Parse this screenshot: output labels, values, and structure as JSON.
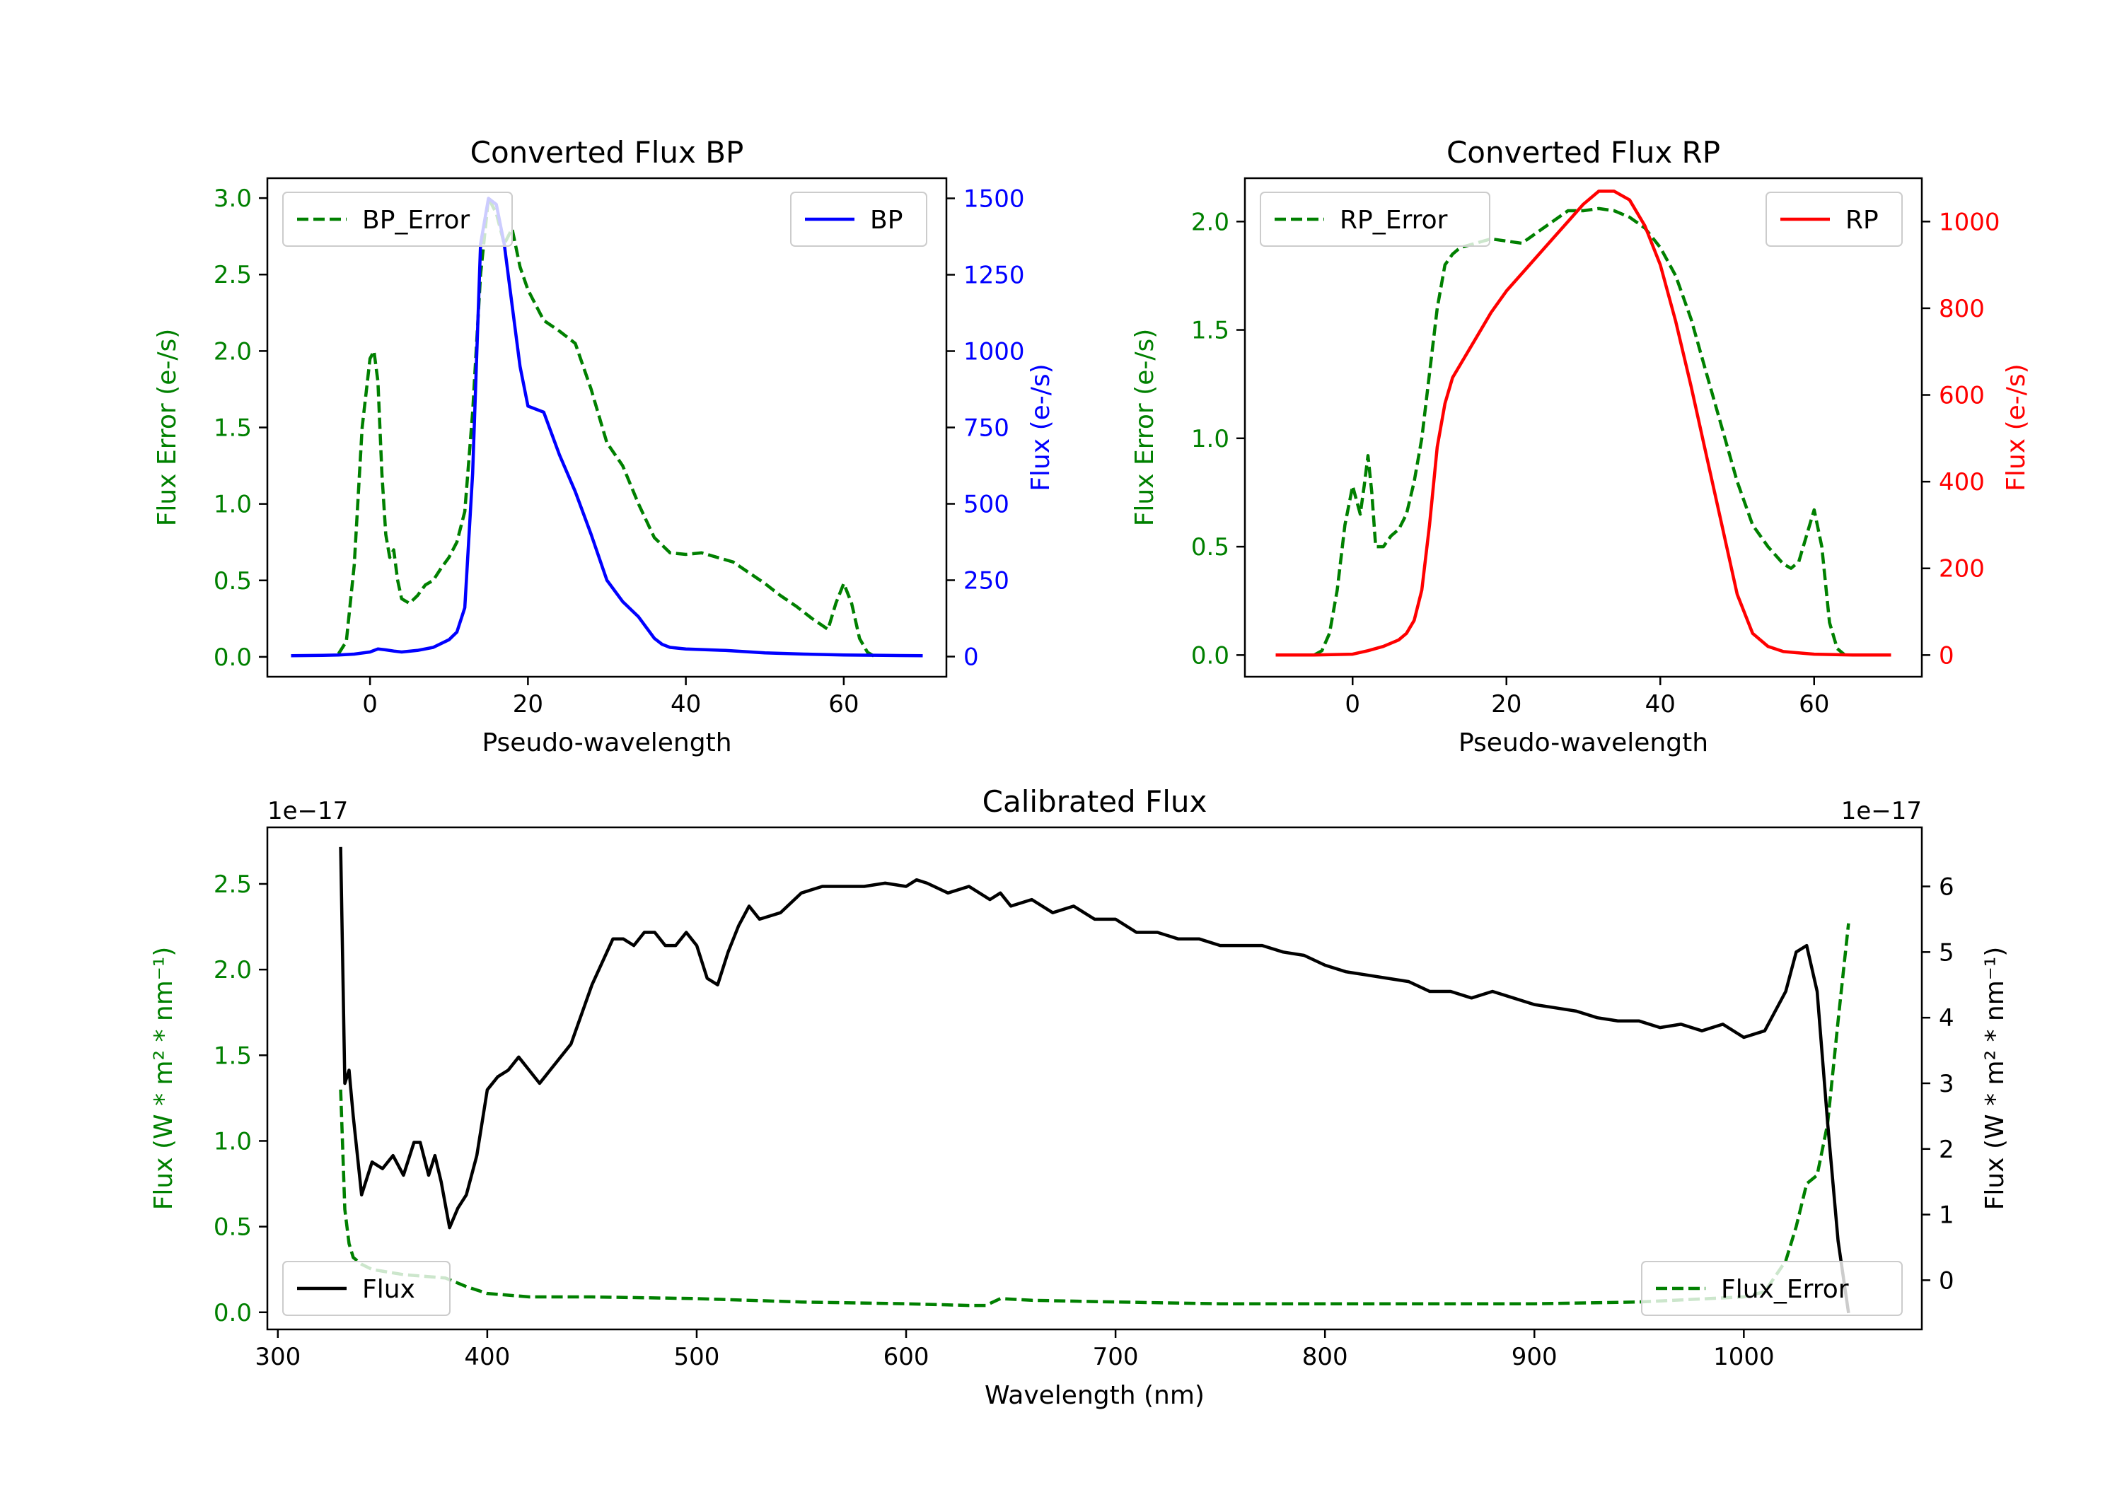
{
  "chart_data": [
    {
      "type": "line",
      "title": "Converted Flux BP",
      "xlabel": "Pseudo-wavelength",
      "ylabel_left": "Flux Error (e-/s)",
      "ylabel_right": "Flux (e-/s)",
      "xlim": [
        -13,
        73
      ],
      "ylim_left": [
        -0.13,
        3.13
      ],
      "ylim_right": [
        -66,
        1566
      ],
      "xticks": [
        "0",
        "20",
        "40",
        "60"
      ],
      "xtick_values": [
        0,
        20,
        40,
        60
      ],
      "yticks_left": [
        "0.0",
        "0.5",
        "1.0",
        "1.5",
        "2.0",
        "2.5",
        "3.0"
      ],
      "ytick_values_left": [
        0,
        0.5,
        1,
        1.5,
        2,
        2.5,
        3
      ],
      "yticks_right": [
        "0",
        "250",
        "500",
        "750",
        "1000",
        "1250",
        "1500"
      ],
      "ytick_values_right": [
        0,
        250,
        500,
        750,
        1000,
        1250,
        1500
      ],
      "legend_left": "BP_Error",
      "legend_right": "BP",
      "colors": {
        "error": "#008000",
        "flux": "#0000ff",
        "left_axis": "#008000",
        "right_axis": "#0000ff"
      },
      "series": [
        {
          "name": "BP_Error",
          "axis": "left",
          "style": "dashed",
          "x": [
            -4,
            -3,
            -2,
            -1,
            0,
            0.5,
            1,
            1.5,
            2,
            2.5,
            3,
            3.5,
            4,
            5,
            6,
            7,
            8,
            9,
            10,
            11,
            12,
            13,
            14,
            15,
            16,
            17,
            18,
            19,
            20,
            22,
            24,
            26,
            28,
            30,
            32,
            34,
            36,
            38,
            40,
            42,
            44,
            46,
            48,
            50,
            52,
            54,
            56,
            58,
            59,
            60,
            61,
            62,
            63,
            64
          ],
          "y": [
            0.02,
            0.1,
            0.6,
            1.5,
            1.95,
            2.0,
            1.8,
            1.2,
            0.8,
            0.65,
            0.7,
            0.5,
            0.38,
            0.35,
            0.4,
            0.47,
            0.5,
            0.58,
            0.65,
            0.75,
            0.95,
            1.6,
            2.5,
            3.0,
            2.9,
            2.7,
            2.8,
            2.55,
            2.4,
            2.2,
            2.13,
            2.05,
            1.75,
            1.4,
            1.25,
            1.0,
            0.78,
            0.68,
            0.67,
            0.68,
            0.65,
            0.62,
            0.55,
            0.48,
            0.4,
            0.33,
            0.25,
            0.18,
            0.35,
            0.48,
            0.35,
            0.12,
            0.03,
            0.0
          ]
        },
        {
          "name": "BP",
          "axis": "right",
          "style": "solid",
          "x": [
            -10,
            -6,
            -4,
            -2,
            0,
            1,
            2,
            3,
            4,
            6,
            8,
            10,
            11,
            12,
            13,
            14,
            15,
            16,
            17,
            18,
            19,
            20,
            22,
            24,
            26,
            28,
            30,
            32,
            34,
            36,
            37,
            38,
            40,
            45,
            50,
            55,
            60,
            65,
            70
          ],
          "y": [
            3,
            4,
            5,
            8,
            15,
            25,
            22,
            18,
            15,
            20,
            30,
            55,
            80,
            160,
            600,
            1350,
            1500,
            1480,
            1350,
            1150,
            950,
            820,
            800,
            660,
            540,
            400,
            250,
            180,
            130,
            60,
            40,
            30,
            25,
            20,
            12,
            8,
            5,
            4,
            3
          ]
        }
      ]
    },
    {
      "type": "line",
      "title": "Converted Flux RP",
      "xlabel": "Pseudo-wavelength",
      "ylabel_left": "Flux Error (e-/s)",
      "ylabel_right": "Flux (e-/s)",
      "xlim": [
        -14,
        74
      ],
      "ylim_left": [
        -0.1,
        2.2
      ],
      "ylim_right": [
        -50,
        1100
      ],
      "xticks": [
        "0",
        "20",
        "40",
        "60"
      ],
      "xtick_values": [
        0,
        20,
        40,
        60
      ],
      "yticks_left": [
        "0.0",
        "0.5",
        "1.0",
        "1.5",
        "2.0"
      ],
      "ytick_values_left": [
        0,
        0.5,
        1,
        1.5,
        2
      ],
      "yticks_right": [
        "0",
        "200",
        "400",
        "600",
        "800",
        "1000"
      ],
      "ytick_values_right": [
        0,
        200,
        400,
        600,
        800,
        1000
      ],
      "legend_left": "RP_Error",
      "legend_right": "RP",
      "colors": {
        "error": "#008000",
        "flux": "#ff0000",
        "left_axis": "#008000",
        "right_axis": "#ff0000"
      },
      "series": [
        {
          "name": "RP_Error",
          "axis": "left",
          "style": "dashed",
          "x": [
            -5,
            -4,
            -3,
            -2,
            -1,
            0,
            1,
            1.5,
            2,
            2.5,
            3,
            4,
            5,
            6,
            7,
            8,
            9,
            10,
            11,
            12,
            13,
            14,
            16,
            18,
            20,
            22,
            24,
            26,
            28,
            30,
            32,
            34,
            36,
            38,
            40,
            42,
            44,
            46,
            48,
            50,
            52,
            54,
            56,
            57,
            58,
            59,
            60,
            61,
            62,
            63,
            64
          ],
          "y": [
            0.0,
            0.02,
            0.1,
            0.3,
            0.6,
            0.78,
            0.65,
            0.78,
            0.92,
            0.75,
            0.5,
            0.5,
            0.55,
            0.58,
            0.65,
            0.8,
            1.0,
            1.3,
            1.6,
            1.8,
            1.85,
            1.88,
            1.9,
            1.92,
            1.91,
            1.9,
            1.95,
            2.0,
            2.05,
            2.05,
            2.06,
            2.05,
            2.02,
            1.97,
            1.88,
            1.75,
            1.55,
            1.3,
            1.05,
            0.8,
            0.6,
            0.5,
            0.42,
            0.4,
            0.43,
            0.55,
            0.67,
            0.5,
            0.15,
            0.03,
            0.0
          ]
        },
        {
          "name": "RP",
          "axis": "right",
          "style": "solid",
          "x": [
            -10,
            -5,
            0,
            2,
            4,
            6,
            7,
            8,
            9,
            10,
            11,
            12,
            13,
            14,
            16,
            18,
            20,
            22,
            24,
            26,
            28,
            30,
            32,
            34,
            36,
            38,
            40,
            42,
            44,
            46,
            48,
            50,
            52,
            54,
            56,
            60,
            65,
            70
          ],
          "y": [
            0,
            0,
            2,
            10,
            20,
            35,
            50,
            80,
            150,
            300,
            480,
            580,
            640,
            670,
            730,
            790,
            840,
            880,
            920,
            960,
            1000,
            1040,
            1070,
            1070,
            1050,
            990,
            900,
            770,
            620,
            460,
            300,
            140,
            50,
            20,
            8,
            2,
            0,
            0
          ]
        }
      ]
    },
    {
      "type": "line",
      "title": "Calibrated Flux",
      "xlabel": "Wavelength (nm)",
      "ylabel_left": "Flux (W * m² * nm⁻¹)",
      "ylabel_right": "Flux (W * m² * nm⁻¹)",
      "offset_left": "1e−17",
      "offset_right": "1e−17",
      "xlim": [
        295,
        1085
      ],
      "ylim_left": [
        -0.1,
        2.83
      ],
      "ylim_right": [
        -0.75,
        6.9
      ],
      "xticks": [
        "300",
        "400",
        "500",
        "600",
        "700",
        "800",
        "900",
        "1000"
      ],
      "xtick_values": [
        300,
        400,
        500,
        600,
        700,
        800,
        900,
        1000
      ],
      "yticks_left": [
        "0.0",
        "0.5",
        "1.0",
        "1.5",
        "2.0",
        "2.5"
      ],
      "ytick_values_left": [
        0,
        0.5,
        1,
        1.5,
        2,
        2.5
      ],
      "yticks_right": [
        "0",
        "1",
        "2",
        "3",
        "4",
        "5",
        "6"
      ],
      "ytick_values_right": [
        0,
        1,
        2,
        3,
        4,
        5,
        6
      ],
      "legend_left": "Flux",
      "legend_right": "Flux_Error",
      "colors": {
        "error": "#008000",
        "flux": "#000000",
        "left_axis": "#008000",
        "right_axis": "#000000"
      },
      "series": [
        {
          "name": "Flux_Error",
          "axis": "left",
          "style": "dashed",
          "x": [
            330,
            332,
            334,
            336,
            340,
            345,
            350,
            360,
            370,
            380,
            390,
            400,
            420,
            450,
            500,
            550,
            600,
            630,
            638,
            645,
            660,
            700,
            750,
            800,
            850,
            900,
            950,
            1000,
            1010,
            1020,
            1025,
            1030,
            1035,
            1040,
            1045,
            1050
          ],
          "y": [
            1.3,
            0.6,
            0.4,
            0.32,
            0.28,
            0.25,
            0.24,
            0.22,
            0.21,
            0.2,
            0.15,
            0.11,
            0.09,
            0.09,
            0.08,
            0.06,
            0.05,
            0.04,
            0.04,
            0.08,
            0.07,
            0.06,
            0.05,
            0.05,
            0.05,
            0.05,
            0.06,
            0.09,
            0.12,
            0.3,
            0.5,
            0.75,
            0.8,
            1.1,
            1.7,
            2.27
          ]
        },
        {
          "name": "Flux",
          "axis": "right",
          "style": "solid",
          "x": [
            330,
            332,
            334,
            336,
            340,
            345,
            350,
            355,
            360,
            365,
            368,
            372,
            375,
            378,
            382,
            386,
            390,
            395,
            400,
            405,
            410,
            415,
            420,
            425,
            430,
            440,
            450,
            460,
            465,
            470,
            475,
            480,
            485,
            490,
            495,
            500,
            505,
            510,
            515,
            520,
            525,
            530,
            540,
            550,
            560,
            570,
            580,
            590,
            600,
            605,
            610,
            620,
            630,
            640,
            645,
            650,
            660,
            670,
            680,
            690,
            700,
            710,
            720,
            730,
            740,
            750,
            760,
            770,
            780,
            790,
            800,
            810,
            820,
            830,
            840,
            850,
            860,
            870,
            880,
            890,
            900,
            910,
            920,
            930,
            940,
            950,
            960,
            970,
            980,
            990,
            1000,
            1010,
            1020,
            1025,
            1030,
            1035,
            1040,
            1045,
            1050
          ],
          "y": [
            6.6,
            3.0,
            3.2,
            2.5,
            1.3,
            1.8,
            1.7,
            1.9,
            1.6,
            2.1,
            2.1,
            1.6,
            1.9,
            1.5,
            0.8,
            1.1,
            1.3,
            1.9,
            2.9,
            3.1,
            3.2,
            3.4,
            3.2,
            3.0,
            3.2,
            3.6,
            4.5,
            5.2,
            5.2,
            5.1,
            5.3,
            5.3,
            5.1,
            5.1,
            5.3,
            5.1,
            4.6,
            4.5,
            5.0,
            5.4,
            5.7,
            5.5,
            5.6,
            5.9,
            6.0,
            6.0,
            6.0,
            6.05,
            6.0,
            6.1,
            6.05,
            5.9,
            6.0,
            5.8,
            5.9,
            5.7,
            5.8,
            5.6,
            5.7,
            5.5,
            5.5,
            5.3,
            5.3,
            5.2,
            5.2,
            5.1,
            5.1,
            5.1,
            5.0,
            4.95,
            4.8,
            4.7,
            4.65,
            4.6,
            4.55,
            4.4,
            4.4,
            4.3,
            4.4,
            4.3,
            4.2,
            4.15,
            4.1,
            4.0,
            3.95,
            3.95,
            3.85,
            3.9,
            3.8,
            3.9,
            3.7,
            3.8,
            4.4,
            5.0,
            5.1,
            4.4,
            2.4,
            0.6,
            -0.5
          ]
        }
      ]
    }
  ]
}
